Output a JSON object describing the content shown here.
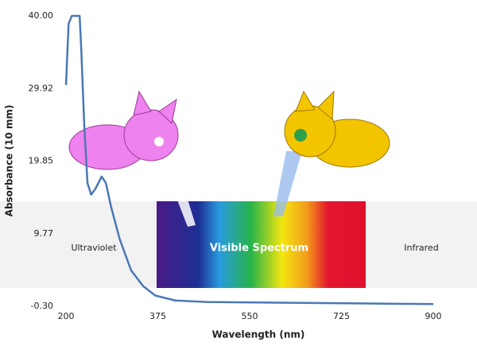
{
  "chart_data": {
    "type": "line",
    "x_label": "Wavelength (nm)",
    "y_label": "Absorbance (10 mm)",
    "x": [
      200,
      205,
      211,
      226,
      229,
      235,
      241,
      248,
      256,
      268,
      276,
      286,
      302,
      324,
      347,
      370,
      408,
      468,
      605,
      756,
      900
    ],
    "values": [
      30.4,
      38.9,
      40,
      40,
      35.6,
      24.5,
      16.8,
      15.2,
      16.0,
      17.7,
      16.8,
      13.5,
      9.1,
      4.7,
      2.5,
      1.2,
      0.5,
      0.3,
      0.2,
      0.1,
      0.0
    ],
    "color": "#4a78b5",
    "xlim": [
      200,
      900
    ],
    "xticks": [
      200,
      375,
      550,
      725,
      900
    ],
    "ylim": [
      -0.3,
      40
    ],
    "yticks": [
      {
        "value": -0.3,
        "label": "-0.30"
      },
      9.77,
      19.85,
      29.92,
      {
        "value": 40,
        "label": "40.00"
      }
    ],
    "region_labels": [
      "Ultraviolet",
      "Visible Spectrum",
      "Infrared"
    ]
  }
}
